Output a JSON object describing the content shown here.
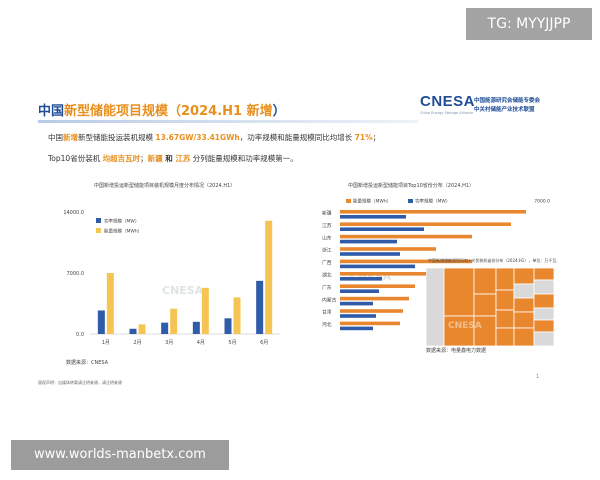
{
  "overlay": {
    "tg_badge": "TG: MYYJJPP",
    "bottom_url": "www.worlds-manbetx.com"
  },
  "header": {
    "title_pre": "中国",
    "title_hl": "新型储能项目规模（2024.H1",
    "title_post": "新增",
    "title_close": "）"
  },
  "logo": {
    "main": "CNESA",
    "cn1": "中国能源研究会储能专委会",
    "cn2": "中关村储能产业技术联盟",
    "sub": "China Energy Storage Alliance"
  },
  "summary": {
    "l1_a": "中国",
    "l1_b": "新增",
    "l1_c": "新型储能投运装机规模 ",
    "l1_d": "13.67GW/33.41GWh",
    "l1_e": "，功率规模和能量规模同比均增长 ",
    "l1_f": "71%",
    "l1_g": "；",
    "l2_a": "Top10省份装机 ",
    "l2_b": "均超吉瓦时",
    "l2_c": "；",
    "l2_d": "新疆",
    "l2_e": " 和 ",
    "l2_f": "江苏",
    "l2_g": " 分列能量规模和功率规模第一。"
  },
  "footnote": "版权声明：自媒体转载请注明来源，请注明来源",
  "page_mark": "1",
  "colors": {
    "power": "#2f5ba8",
    "energy": "#f6c453",
    "energy_orange": "#e8872e",
    "treemap_orange": "#e8872e",
    "treemap_gray": "#d9d9d9"
  },
  "chart_data": [
    {
      "type": "bar",
      "title": "中国新增投运新型储能项目装机规模月度分布情况（2024.H1）",
      "categories": [
        "1月",
        "2月",
        "3月",
        "4月",
        "5月",
        "6月"
      ],
      "series": [
        {
          "name": "功率规模（MW）",
          "values": [
            2700,
            600,
            1300,
            1400,
            1800,
            6100
          ]
        },
        {
          "name": "能量规模（MWh）",
          "values": [
            7000,
            1100,
            2900,
            5300,
            4200,
            13000
          ]
        }
      ],
      "ylim": [
        0,
        14000
      ],
      "yticks": [
        "0.0",
        "7000.0",
        "14000.0"
      ],
      "legend": "top-left",
      "grid": false,
      "watermark": "CNESA",
      "source": "数据来源：CNESA"
    },
    {
      "type": "bar",
      "orientation": "horizontal",
      "title": "中国新增投运新型储能项目Top10省份分布（2024.H1）",
      "categories": [
        "新疆",
        "江苏",
        "山东",
        "浙江",
        "广西",
        "湖北",
        "广东",
        "内蒙古",
        "甘肃",
        "河北"
      ],
      "series": [
        {
          "name": "能量规模（MWh）",
          "values": [
            6200,
            5700,
            4400,
            3200,
            4400,
            3100,
            2500,
            2300,
            2100,
            2000
          ]
        },
        {
          "name": "功率规模（MW）",
          "values": [
            2200,
            2800,
            1900,
            2000,
            2500,
            1400,
            1300,
            1100,
            1200,
            1100
          ]
        }
      ],
      "xlim": [
        0,
        7000
      ],
      "xtick_labels": [
        "7000.0"
      ],
      "legend": "top",
      "watermark": "CNESA"
    },
    {
      "type": "treemap",
      "title": "中国新增储能规划风电+光伏装机省份分布（2024.H1），单位：万千瓦",
      "source": "数据来源：电量鑫电力数据",
      "watermark": "CNESA"
    }
  ]
}
